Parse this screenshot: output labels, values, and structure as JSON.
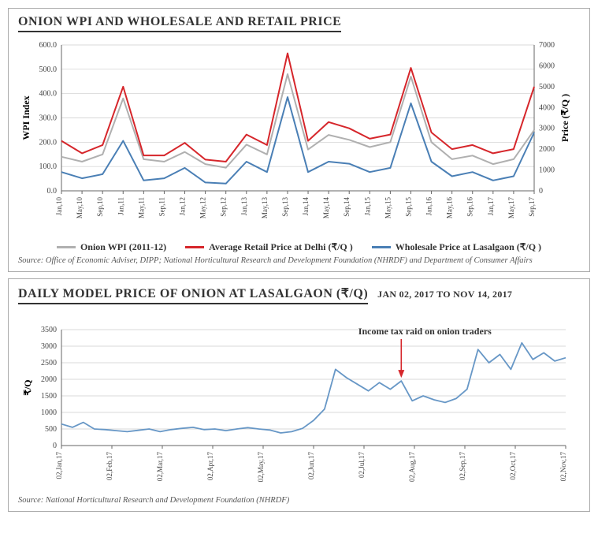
{
  "chart1": {
    "type": "line",
    "title": "ONION WPI AND WHOLESALE AND RETAIL PRICE",
    "left_axis_label": "WPI Index",
    "right_axis_label": "Price (₹/Q )",
    "left_ylim": [
      0,
      600
    ],
    "left_ytick_step": 100,
    "right_ylim": [
      0,
      7000
    ],
    "right_ytick_step": 1000,
    "background_color": "#ffffff",
    "grid_color": "#cccccc",
    "axis_color": "#666666",
    "tick_fontsize": 10,
    "title_fontsize": 15,
    "x_labels": [
      "Jan,10",
      "May,10",
      "Sep,10",
      "Jan,11",
      "May,11",
      "Sep,11",
      "Jan,12",
      "May,12",
      "Sep,12",
      "Jan,13",
      "May,13",
      "Sep,13",
      "Jan,14",
      "May,14",
      "Sep,14",
      "Jan,15",
      "May,15",
      "Sep,15",
      "Jan,16",
      "May,16",
      "Sep,16",
      "Jan,17",
      "May,17",
      "Sep,17"
    ],
    "series": [
      {
        "name": "Onion WPI (2011-12)",
        "color": "#b0b0b0",
        "line_width": 2,
        "axis": "left",
        "values": [
          140,
          120,
          150,
          380,
          130,
          120,
          160,
          110,
          95,
          190,
          150,
          480,
          170,
          230,
          210,
          180,
          200,
          470,
          200,
          130,
          145,
          110,
          130,
          250
        ]
      },
      {
        "name": "Average Retail Price at Delhi (₹/Q )",
        "color": "#d6262b",
        "line_width": 2,
        "axis": "right",
        "values": [
          2400,
          1800,
          2200,
          5000,
          1700,
          1700,
          2300,
          1500,
          1400,
          2700,
          2200,
          6600,
          2400,
          3300,
          3000,
          2500,
          2700,
          5900,
          2800,
          2000,
          2200,
          1800,
          2000,
          5000
        ]
      },
      {
        "name": "Wholesale Price at Lasalgaon (₹/Q )",
        "color": "#4a7fb5",
        "line_width": 2,
        "axis": "right",
        "values": [
          900,
          600,
          800,
          2400,
          500,
          600,
          1100,
          400,
          350,
          1400,
          900,
          4500,
          900,
          1400,
          1300,
          900,
          1100,
          4200,
          1400,
          700,
          900,
          500,
          700,
          2800
        ]
      }
    ],
    "legend_fontsize": 12,
    "source": "Source: Office of Economic Adviser, DIPP; National Horticultural Research and Development Foundation (NHRDF) and Department of Consumer Affairs",
    "source_fontsize": 10.5
  },
  "chart2": {
    "type": "line",
    "title": "DAILY MODEL PRICE OF ONION AT LASALGAON (₹/Q)",
    "date_range": "JAN 02, 2017 TO NOV 14, 2017",
    "ylabel": "₹/Q",
    "ylim": [
      0,
      3500
    ],
    "ytick_step": 500,
    "background_color": "#ffffff",
    "grid_color": "#cccccc",
    "axis_color": "#666666",
    "tick_fontsize": 10,
    "title_fontsize": 14,
    "line_color": "#6797c6",
    "line_width": 1.8,
    "x_labels": [
      "02,Jan,17",
      "02,Feb,17",
      "02,Mar,17",
      "02,Apr,17",
      "02,May,17",
      "02,Jun,17",
      "02,Jul,17",
      "02,Aug,17",
      "02,Sep,17",
      "02,Oct,17",
      "02,Nov,17"
    ],
    "values": [
      650,
      550,
      700,
      500,
      480,
      450,
      420,
      460,
      500,
      420,
      480,
      520,
      550,
      480,
      500,
      450,
      500,
      540,
      500,
      470,
      380,
      420,
      520,
      760,
      1100,
      2300,
      2050,
      1850,
      1650,
      1900,
      1700,
      1950,
      1350,
      1500,
      1380,
      1300,
      1420,
      1700,
      2900,
      2500,
      2750,
      2300,
      3100,
      2600,
      2800,
      2550,
      2650
    ],
    "annotation": {
      "text": "Income tax raid on onion traders",
      "x_index": 31,
      "y": 1800,
      "arrow_color": "#d6262b",
      "fontsize": 12
    },
    "source": "Source: National Horticultural Research and Development Foundation (NHRDF)",
    "source_fontsize": 10.5
  }
}
